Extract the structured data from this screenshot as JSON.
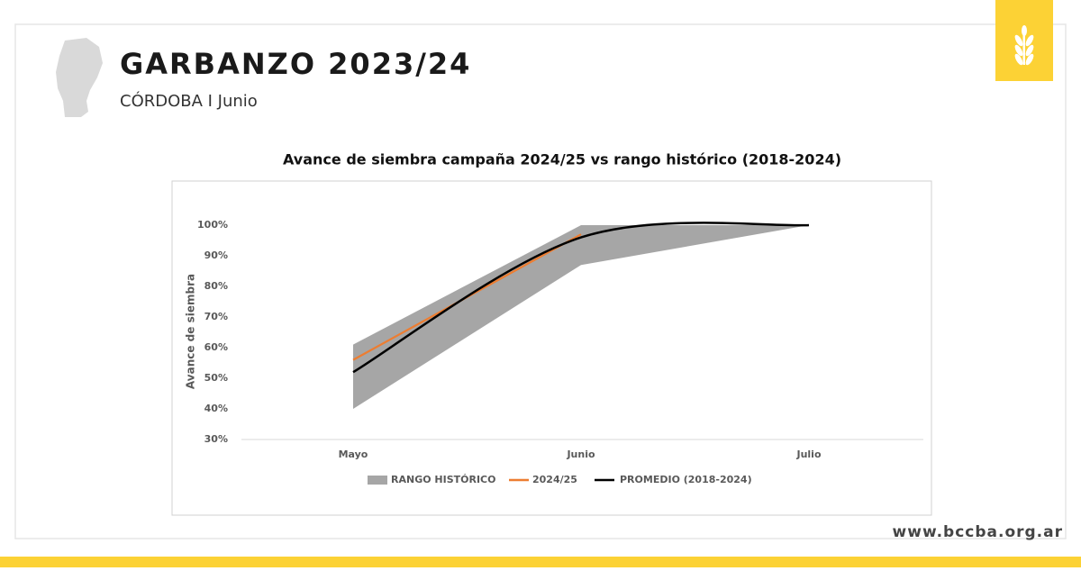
{
  "header": {
    "title": "GARBANZO 2023/24",
    "subtitle": "CÓRDOBA I Junio"
  },
  "chart_data": {
    "type": "line",
    "title": "Avance de siembra campaña 2024/25 vs rango histórico (2018-2024)",
    "y_label": "Avance de siembra",
    "categories": [
      "Mayo",
      "Junio",
      "Julio"
    ],
    "ylim": [
      30,
      100
    ],
    "yticks": [
      {
        "value": 30,
        "label": "30%"
      },
      {
        "value": 40,
        "label": "40%"
      },
      {
        "value": 50,
        "label": "50%"
      },
      {
        "value": 60,
        "label": "60%"
      },
      {
        "value": 70,
        "label": "70%"
      },
      {
        "value": 80,
        "label": "80%"
      },
      {
        "value": 90,
        "label": "90%"
      },
      {
        "value": 100,
        "label": "100%"
      }
    ],
    "grid": false,
    "legend": "bottom",
    "range": {
      "name": "RANGO HISTÓRICO",
      "color": "#a6a6a6",
      "low": [
        40,
        87,
        100
      ],
      "high": [
        61,
        100,
        100
      ]
    },
    "series": [
      {
        "name": "2024/25",
        "color": "#ed7d31",
        "values": [
          56,
          97,
          null
        ]
      },
      {
        "name": "PROMEDIO (2018-2024)",
        "color": "#000000",
        "values": [
          52,
          96,
          100
        ]
      }
    ]
  },
  "footer": {
    "url": "www.bccba.org.ar"
  }
}
